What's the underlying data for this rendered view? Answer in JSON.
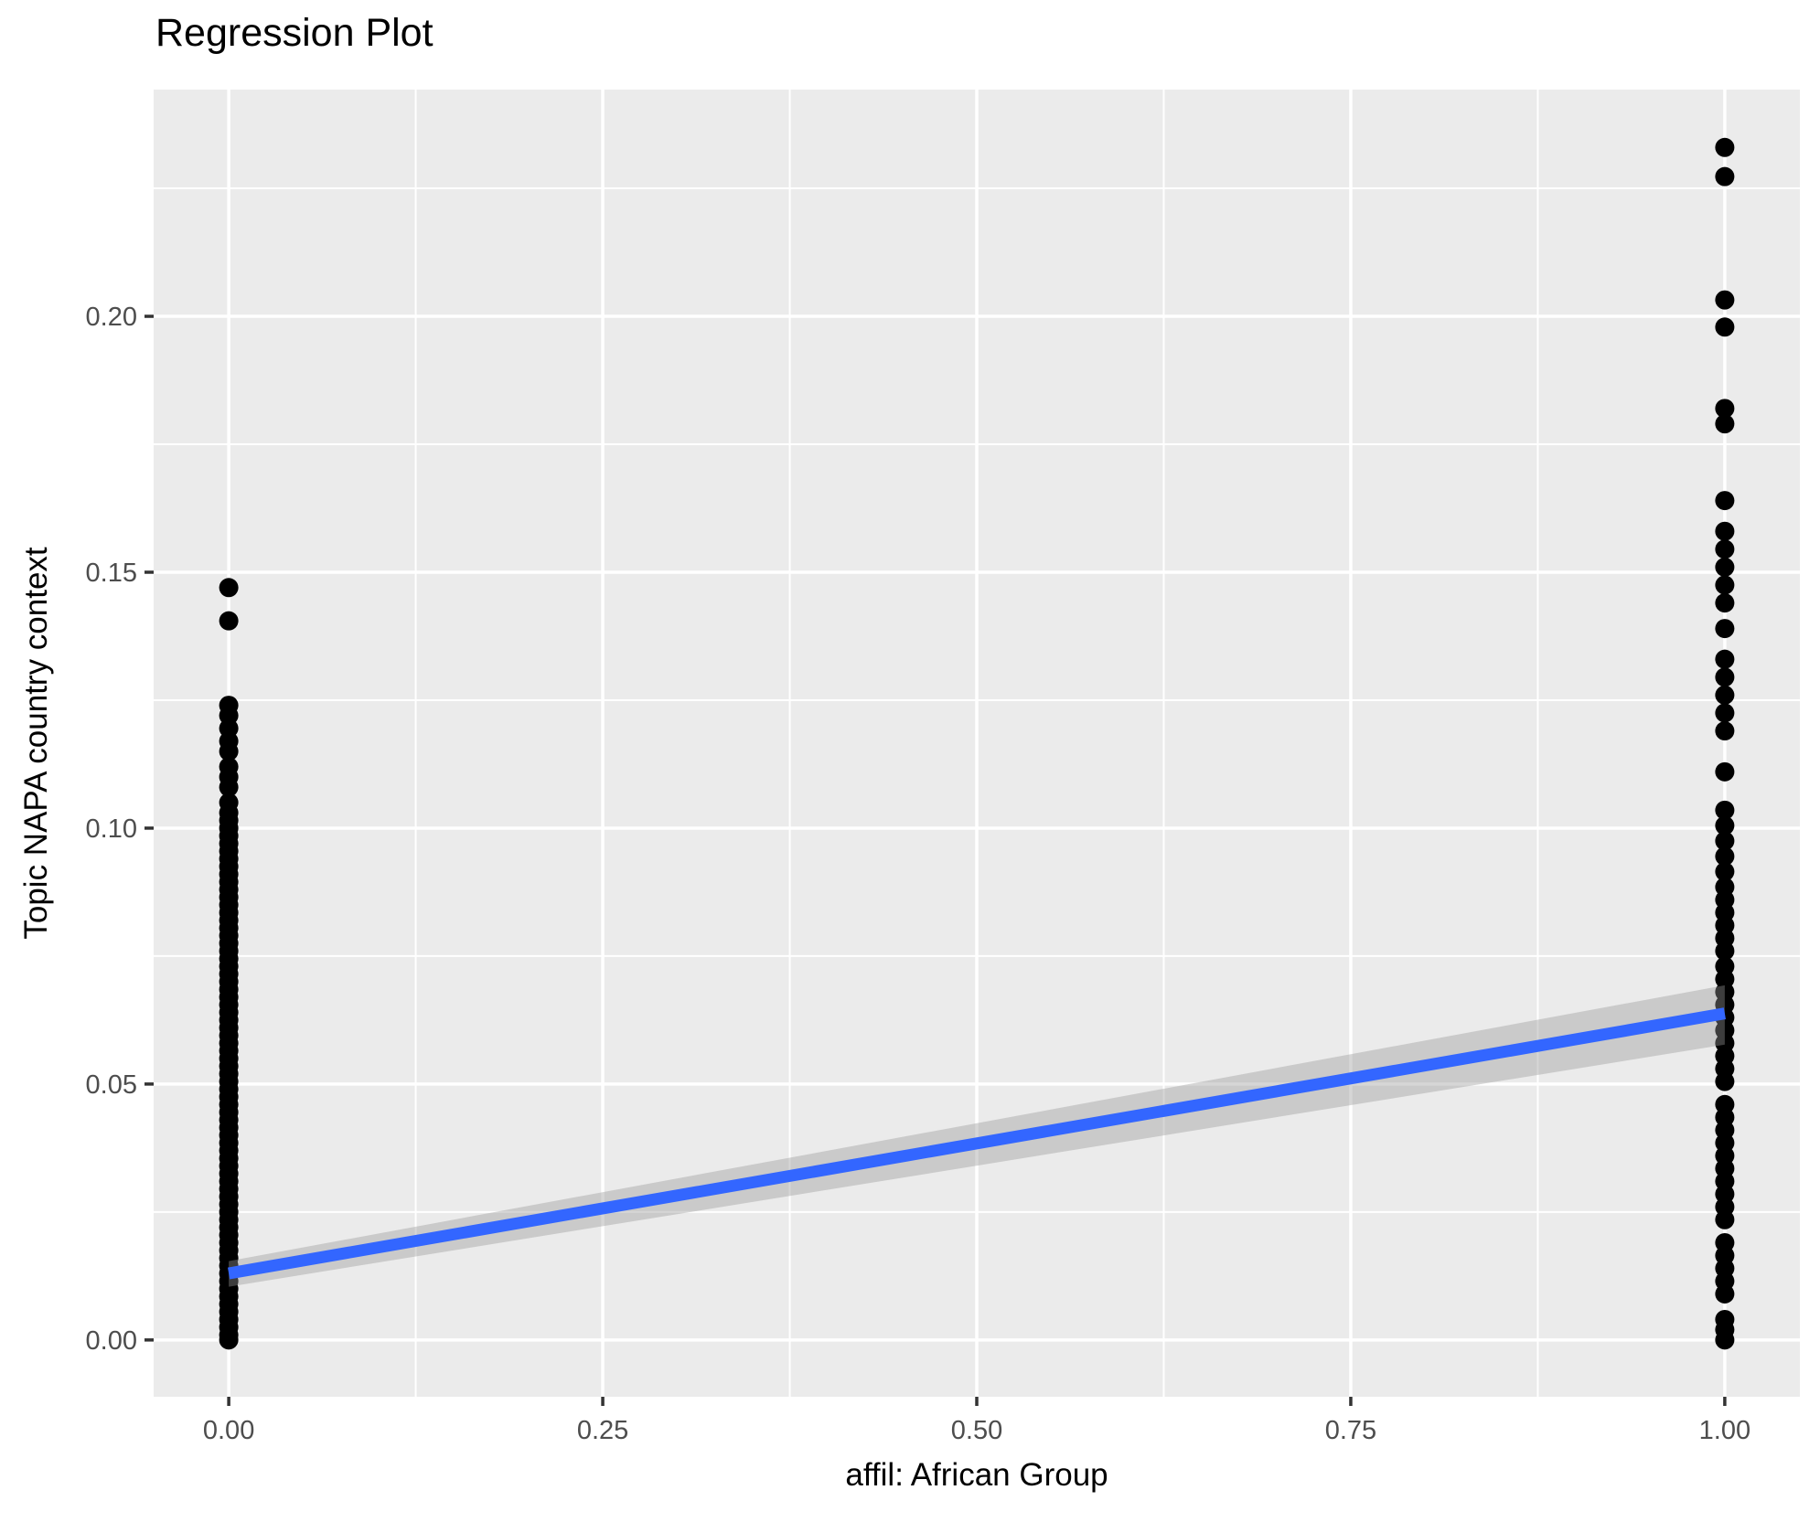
{
  "chart_data": {
    "type": "scatter",
    "title": "Regression Plot",
    "xlabel": "affil: African Group",
    "ylabel": "Topic NAPA country context",
    "legend": "none",
    "grid": true,
    "xlim": [
      -0.0502,
      1.0502
    ],
    "ylim": [
      -0.0111,
      0.2443
    ],
    "x_ticks": [
      "0.00",
      "0.25",
      "0.50",
      "0.75",
      "1.00"
    ],
    "x_tick_values": [
      0,
      0.25,
      0.5,
      0.75,
      1
    ],
    "x_minor_values": [
      0.125,
      0.375,
      0.625,
      0.875
    ],
    "y_ticks": [
      "0.00",
      "0.05",
      "0.10",
      "0.15",
      "0.20"
    ],
    "y_tick_values": [
      0,
      0.05,
      0.1,
      0.15,
      0.2
    ],
    "y_minor_values": [
      0.025,
      0.075,
      0.125,
      0.175,
      0.225
    ],
    "colors": {
      "panel_bg": "#EBEBEB",
      "grid": "#FFFFFF",
      "point": "#000000",
      "line": "#3366FF",
      "band": "#999999",
      "band_opacity": 0.4,
      "tick_mark": "#333333",
      "tick_label": "#4D4D4D",
      "text": "#000000"
    },
    "regression": {
      "x": [
        0,
        1
      ],
      "y": [
        0.013,
        0.0638
      ]
    },
    "ci_band": {
      "x": [
        0,
        1
      ],
      "upper": [
        0.0154,
        0.0693
      ],
      "lower": [
        0.0104,
        0.0577
      ]
    },
    "series": [
      {
        "name": "affil = 0",
        "x": 0,
        "y": [
          0.147,
          0.1405,
          0.124,
          0.122,
          0.1195,
          0.117,
          0.115,
          0.112,
          0.11,
          0.108,
          0.105,
          0.103,
          0.1015,
          0.1,
          0.0985,
          0.097,
          0.0955,
          0.094,
          0.0925,
          0.091,
          0.0895,
          0.088,
          0.0865,
          0.085,
          0.0835,
          0.082,
          0.0805,
          0.079,
          0.0775,
          0.076,
          0.0745,
          0.073,
          0.0715,
          0.07,
          0.0685,
          0.067,
          0.0655,
          0.064,
          0.0625,
          0.061,
          0.0595,
          0.058,
          0.0565,
          0.055,
          0.0535,
          0.052,
          0.0505,
          0.049,
          0.0475,
          0.046,
          0.0445,
          0.043,
          0.0415,
          0.04,
          0.0385,
          0.037,
          0.0355,
          0.034,
          0.0325,
          0.031,
          0.0295,
          0.028,
          0.0265,
          0.025,
          0.0235,
          0.022,
          0.0205,
          0.019,
          0.0175,
          0.016,
          0.0145,
          0.013,
          0.0115,
          0.01,
          0.0085,
          0.007,
          0.0055,
          0.004,
          0.0025,
          0.001,
          0.0
        ]
      },
      {
        "name": "affil = 1",
        "x": 1,
        "y": [
          0.233,
          0.2273,
          0.2032,
          0.1979,
          0.182,
          0.179,
          0.164,
          0.158,
          0.1545,
          0.151,
          0.1475,
          0.144,
          0.139,
          0.133,
          0.1295,
          0.126,
          0.1225,
          0.119,
          0.111,
          0.1035,
          0.1005,
          0.0975,
          0.0945,
          0.0915,
          0.0885,
          0.086,
          0.0835,
          0.081,
          0.0785,
          0.076,
          0.073,
          0.0705,
          0.068,
          0.0655,
          0.063,
          0.0605,
          0.058,
          0.0555,
          0.053,
          0.0505,
          0.046,
          0.0435,
          0.041,
          0.0385,
          0.036,
          0.0335,
          0.031,
          0.0285,
          0.026,
          0.0235,
          0.019,
          0.0165,
          0.014,
          0.0115,
          0.009,
          0.004,
          0.002,
          0.0
        ]
      }
    ]
  }
}
